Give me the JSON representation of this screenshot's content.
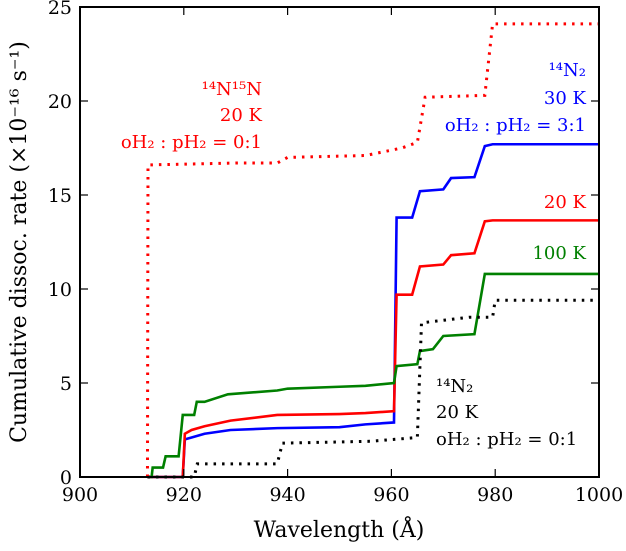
{
  "chart_data": {
    "type": "line",
    "title": "",
    "xlabel": "Wavelength (Å)",
    "ylabel": "Cumulative dissoc. rate (×10⁻¹⁶ s⁻¹)",
    "xlim": [
      900,
      1000
    ],
    "ylim": [
      0,
      25
    ],
    "x_ticks": [
      "900",
      "920",
      "940",
      "960",
      "980",
      "1000"
    ],
    "y_ticks": [
      "0",
      "5",
      "10",
      "15",
      "20",
      "25"
    ],
    "grid": false,
    "series": [
      {
        "name": "¹⁴N₂ 30 K oH₂:pH₂=3:1",
        "color": "#0000ff",
        "style": "solid",
        "points": [
          [
            913,
            0
          ],
          [
            919.8,
            0
          ],
          [
            920.2,
            2.0
          ],
          [
            921.5,
            2.1
          ],
          [
            924,
            2.3
          ],
          [
            929,
            2.5
          ],
          [
            938,
            2.6
          ],
          [
            950,
            2.65
          ],
          [
            955,
            2.8
          ],
          [
            960.5,
            2.9
          ],
          [
            961,
            13.8
          ],
          [
            964,
            13.8
          ],
          [
            965.5,
            15.2
          ],
          [
            970,
            15.3
          ],
          [
            971.5,
            15.9
          ],
          [
            976,
            15.95
          ],
          [
            978,
            17.6
          ],
          [
            979.5,
            17.7
          ],
          [
            1000,
            17.7
          ]
        ]
      },
      {
        "name": "20 K",
        "color": "#ff0000",
        "style": "solid",
        "points": [
          [
            913,
            0
          ],
          [
            919.8,
            0
          ],
          [
            920.2,
            2.3
          ],
          [
            921.5,
            2.5
          ],
          [
            924,
            2.7
          ],
          [
            929,
            3.0
          ],
          [
            938,
            3.3
          ],
          [
            950,
            3.35
          ],
          [
            955,
            3.4
          ],
          [
            960.5,
            3.5
          ],
          [
            961,
            9.7
          ],
          [
            964,
            9.7
          ],
          [
            965.5,
            11.2
          ],
          [
            970,
            11.3
          ],
          [
            971.5,
            11.8
          ],
          [
            976,
            11.9
          ],
          [
            978,
            13.6
          ],
          [
            979.5,
            13.65
          ],
          [
            1000,
            13.65
          ]
        ]
      },
      {
        "name": "100 K",
        "color": "#008000",
        "style": "solid",
        "points": [
          [
            913,
            0
          ],
          [
            913.8,
            0
          ],
          [
            914,
            0.5
          ],
          [
            916,
            0.5
          ],
          [
            916.5,
            1.1
          ],
          [
            919,
            1.1
          ],
          [
            919.8,
            3.3
          ],
          [
            922,
            3.3
          ],
          [
            922.5,
            4.0
          ],
          [
            924,
            4.0
          ],
          [
            928.5,
            4.4
          ],
          [
            938,
            4.6
          ],
          [
            940,
            4.7
          ],
          [
            950,
            4.8
          ],
          [
            955,
            4.85
          ],
          [
            960.5,
            5.0
          ],
          [
            961,
            5.9
          ],
          [
            965,
            6.0
          ],
          [
            965.5,
            6.7
          ],
          [
            968,
            6.8
          ],
          [
            970,
            7.5
          ],
          [
            976,
            7.6
          ],
          [
            978,
            10.8
          ],
          [
            1000,
            10.8
          ]
        ]
      },
      {
        "name": "¹⁴N₂ 20 K oH₂:pH₂=0:1",
        "color": "#000000",
        "style": "dotted",
        "points": [
          [
            913,
            0
          ],
          [
            922,
            0
          ],
          [
            922.6,
            0.7
          ],
          [
            938,
            0.7
          ],
          [
            939,
            1.8
          ],
          [
            956,
            1.9
          ],
          [
            965,
            2.1
          ],
          [
            965.8,
            8.2
          ],
          [
            975,
            8.5
          ],
          [
            979.5,
            8.5
          ],
          [
            980,
            9.4
          ],
          [
            1000,
            9.4
          ]
        ]
      },
      {
        "name": "¹⁴N¹⁵N 20 K oH₂:pH₂=0:1",
        "color": "#ff0000",
        "style": "dotted",
        "points": [
          [
            913,
            0
          ],
          [
            913.1,
            16.6
          ],
          [
            930,
            16.7
          ],
          [
            938,
            16.7
          ],
          [
            940,
            17.0
          ],
          [
            955,
            17.1
          ],
          [
            962,
            17.5
          ],
          [
            965,
            17.8
          ],
          [
            966.5,
            20.2
          ],
          [
            978,
            20.3
          ],
          [
            979.5,
            24.1
          ],
          [
            1000,
            24.1
          ]
        ]
      }
    ],
    "annotations": [
      {
        "id": "n2-30k",
        "color": "#0000ff",
        "lines": [
          "¹⁴N₂",
          "30 K",
          "oH₂ : pH₂ = 3:1"
        ]
      },
      {
        "id": "red-20k",
        "color": "#ff0000",
        "lines": [
          "20 K"
        ]
      },
      {
        "id": "green-100k",
        "color": "#008000",
        "lines": [
          "100 K"
        ]
      },
      {
        "id": "n2-20k",
        "color": "#000000",
        "lines": [
          "¹⁴N₂",
          "20 K",
          "oH₂ : pH₂ = 0:1"
        ]
      },
      {
        "id": "n15n-20k",
        "color": "#ff0000",
        "lines": [
          "¹⁴N¹⁵N",
          "20 K",
          "oH₂ : pH₂ = 0:1"
        ]
      }
    ]
  }
}
